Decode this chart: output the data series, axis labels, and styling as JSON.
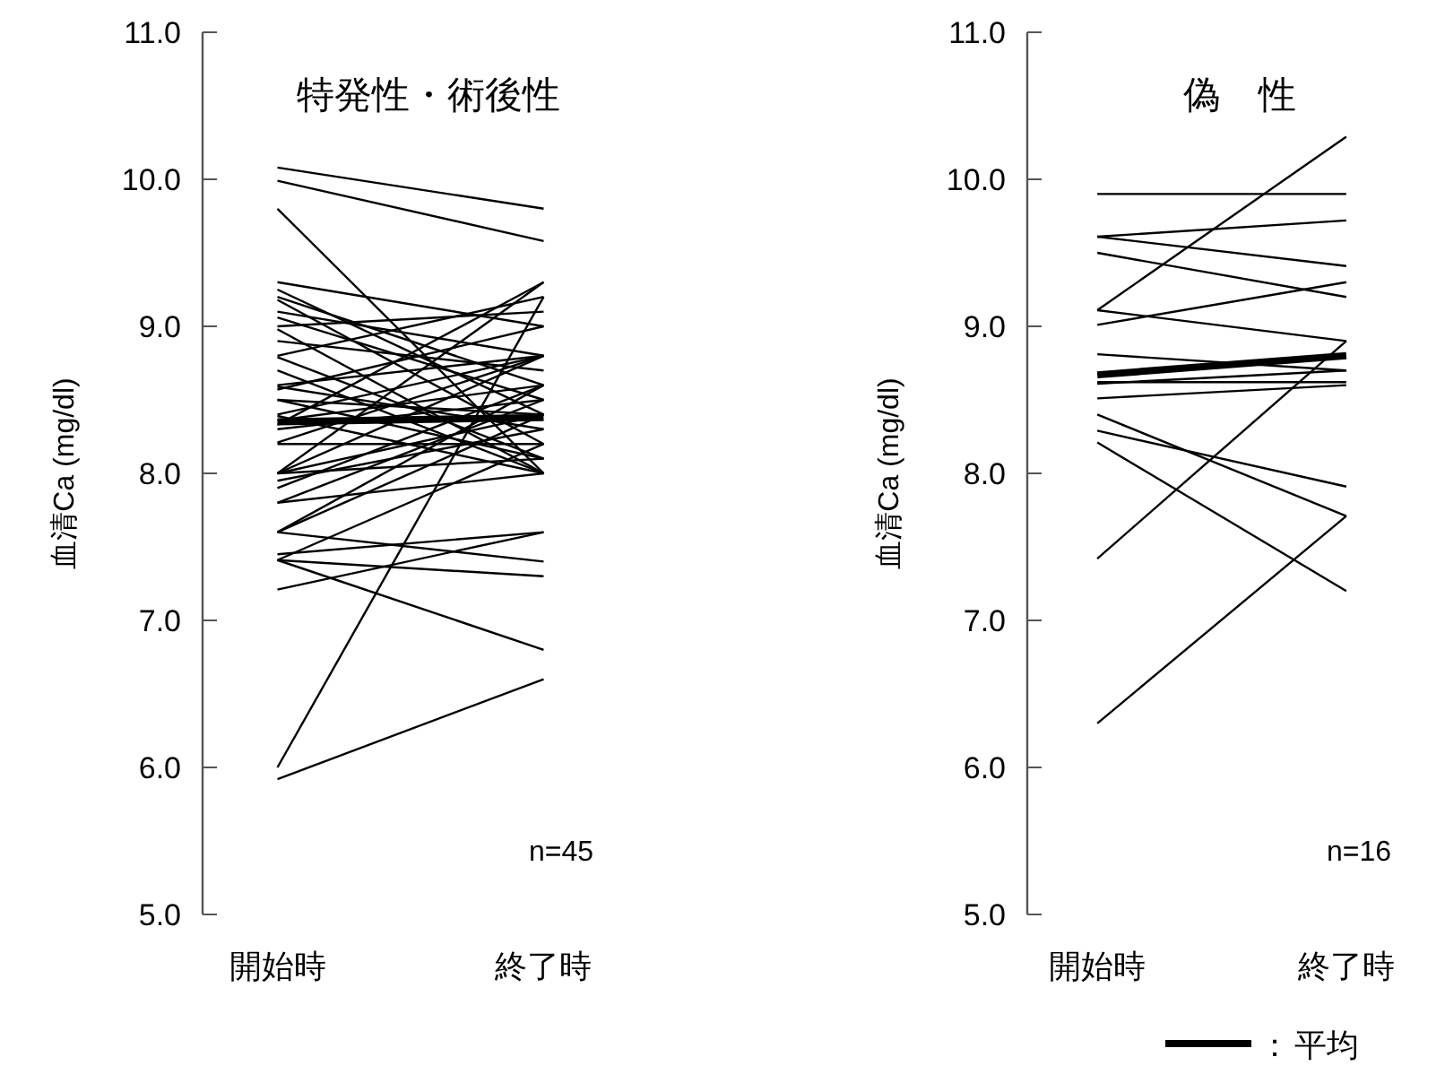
{
  "chart_data": [
    {
      "type": "line",
      "title": "特発性・術後性",
      "ylabel": "血清Ca (mg/dl)",
      "categories": [
        "開始時",
        "終了時"
      ],
      "ylim": [
        5,
        11
      ],
      "yticks": [
        {
          "value": 5,
          "label": "5.0"
        },
        {
          "value": 6,
          "label": "6.0"
        },
        {
          "value": 7,
          "label": "7.0"
        },
        {
          "value": 8,
          "label": "8.0"
        },
        {
          "value": 9,
          "label": "9.0"
        },
        {
          "value": 10,
          "label": "10.0"
        },
        {
          "value": 11,
          "label": "11.0"
        }
      ],
      "annotations": [
        "n=45"
      ],
      "legend": false,
      "grid": false,
      "marker": "none",
      "series": [
        {
          "color": "#000000",
          "values": [
            10.08,
            9.8
          ]
        },
        {
          "color": "#000000",
          "values": [
            9.99,
            9.58
          ]
        },
        {
          "color": "#000000",
          "values": [
            9.8,
            8.0
          ]
        },
        {
          "color": "#000000",
          "values": [
            9.3,
            9.0
          ]
        },
        {
          "color": "#000000",
          "values": [
            9.25,
            8.4
          ]
        },
        {
          "color": "#000000",
          "values": [
            9.2,
            8.6
          ]
        },
        {
          "color": "#000000",
          "values": [
            9.18,
            8.2
          ]
        },
        {
          "color": "#000000",
          "values": [
            9.1,
            8.8
          ]
        },
        {
          "color": "#000000",
          "values": [
            9.06,
            8.5
          ]
        },
        {
          "color": "#000000",
          "values": [
            9.0,
            9.1
          ]
        },
        {
          "color": "#000000",
          "values": [
            8.98,
            8.0
          ]
        },
        {
          "color": "#000000",
          "values": [
            8.9,
            8.7
          ]
        },
        {
          "color": "#000000",
          "values": [
            8.8,
            9.2
          ]
        },
        {
          "color": "#000000",
          "values": [
            8.79,
            8.1
          ]
        },
        {
          "color": "#000000",
          "values": [
            8.6,
            8.8
          ]
        },
        {
          "color": "#000000",
          "values": [
            8.59,
            8.3
          ]
        },
        {
          "color": "#000000",
          "values": [
            8.57,
            9.0
          ]
        },
        {
          "color": "#000000",
          "values": [
            8.5,
            8.4
          ]
        },
        {
          "color": "#000000",
          "values": [
            8.4,
            8.8
          ]
        },
        {
          "color": "#000000",
          "values": [
            8.39,
            8.0
          ]
        },
        {
          "color": "#000000",
          "values": [
            8.36,
            8.6
          ]
        },
        {
          "color": "#000000",
          "values": [
            8.33,
            9.3
          ]
        },
        {
          "color": "#000000",
          "values": [
            8.3,
            8.5
          ]
        },
        {
          "color": "#000000",
          "values": [
            8.21,
            8.8
          ]
        },
        {
          "color": "#000000",
          "values": [
            8.2,
            8.2
          ]
        },
        {
          "color": "#000000",
          "values": [
            8.0,
            8.8
          ]
        },
        {
          "color": "#000000",
          "values": [
            8.0,
            8.4
          ]
        },
        {
          "color": "#000000",
          "values": [
            8.0,
            8.1
          ]
        },
        {
          "color": "#000000",
          "values": [
            8.0,
            9.3
          ]
        },
        {
          "color": "#000000",
          "values": [
            7.95,
            8.3
          ]
        },
        {
          "color": "#000000",
          "values": [
            7.9,
            8.6
          ]
        },
        {
          "color": "#000000",
          "values": [
            7.8,
            8.5
          ]
        },
        {
          "color": "#000000",
          "values": [
            7.8,
            8.0
          ]
        },
        {
          "color": "#000000",
          "values": [
            7.6,
            8.6
          ]
        },
        {
          "color": "#000000",
          "values": [
            7.6,
            8.4
          ]
        },
        {
          "color": "#000000",
          "values": [
            7.6,
            7.4
          ]
        },
        {
          "color": "#000000",
          "values": [
            7.41,
            8.2
          ]
        },
        {
          "color": "#000000",
          "values": [
            7.41,
            7.3
          ]
        },
        {
          "color": "#000000",
          "values": [
            7.41,
            6.8
          ]
        },
        {
          "color": "#000000",
          "values": [
            7.45,
            7.6
          ]
        },
        {
          "color": "#000000",
          "values": [
            7.21,
            7.6
          ]
        },
        {
          "color": "#000000",
          "values": [
            6.0,
            9.2
          ]
        },
        {
          "color": "#000000",
          "values": [
            5.92,
            6.6
          ]
        },
        {
          "color": "#000000",
          "values": [
            8.5,
            8.1
          ]
        },
        {
          "color": "#000000",
          "values": [
            8.7,
            8.0
          ]
        },
        {
          "color": "#000000",
          "values": [
            8.35,
            8.38
          ]
        }
      ]
    },
    {
      "type": "line",
      "title": "偽　性",
      "ylabel": "血清Ca (mg/dl)",
      "categories": [
        "開始時",
        "終了時"
      ],
      "ylim": [
        5,
        11
      ],
      "yticks": [
        {
          "value": 5,
          "label": "5.0"
        },
        {
          "value": 6,
          "label": "6.0"
        },
        {
          "value": 7,
          "label": "7.0"
        },
        {
          "value": 8,
          "label": "8.0"
        },
        {
          "value": 9,
          "label": "9.0"
        },
        {
          "value": 10,
          "label": "10.0"
        },
        {
          "value": 11,
          "label": "11.0"
        }
      ],
      "annotations": [
        "n=16"
      ],
      "legend": "bottom right",
      "legend_title": "：",
      "grid": false,
      "marker": "none",
      "series": [
        {
          "color": "#000000",
          "values": [
            9.9,
            9.9
          ]
        },
        {
          "color": "#000000",
          "values": [
            9.61,
            9.72
          ]
        },
        {
          "color": "#000000",
          "values": [
            9.61,
            9.41
          ]
        },
        {
          "color": "#000000",
          "values": [
            9.5,
            9.2
          ]
        },
        {
          "color": "#000000",
          "values": [
            9.11,
            10.29
          ]
        },
        {
          "color": "#000000",
          "values": [
            9.11,
            8.9
          ]
        },
        {
          "color": "#000000",
          "values": [
            9.01,
            9.3
          ]
        },
        {
          "color": "#000000",
          "values": [
            8.81,
            8.7
          ]
        },
        {
          "color": "#000000",
          "values": [
            8.61,
            8.7
          ]
        },
        {
          "color": "#000000",
          "values": [
            8.51,
            8.6
          ]
        },
        {
          "color": "#000000",
          "values": [
            8.4,
            7.71
          ]
        },
        {
          "color": "#000000",
          "values": [
            8.29,
            7.91
          ]
        },
        {
          "color": "#000000",
          "values": [
            8.21,
            7.2
          ]
        },
        {
          "color": "#000000",
          "values": [
            7.42,
            8.9
          ]
        },
        {
          "color": "#000000",
          "values": [
            6.3,
            7.71
          ]
        },
        {
          "color": "#000000",
          "values": [
            8.62,
            8.62
          ]
        },
        {
          "name": "平均",
          "color": "#000000",
          "values": [
            8.67,
            8.8
          ]
        }
      ]
    }
  ]
}
